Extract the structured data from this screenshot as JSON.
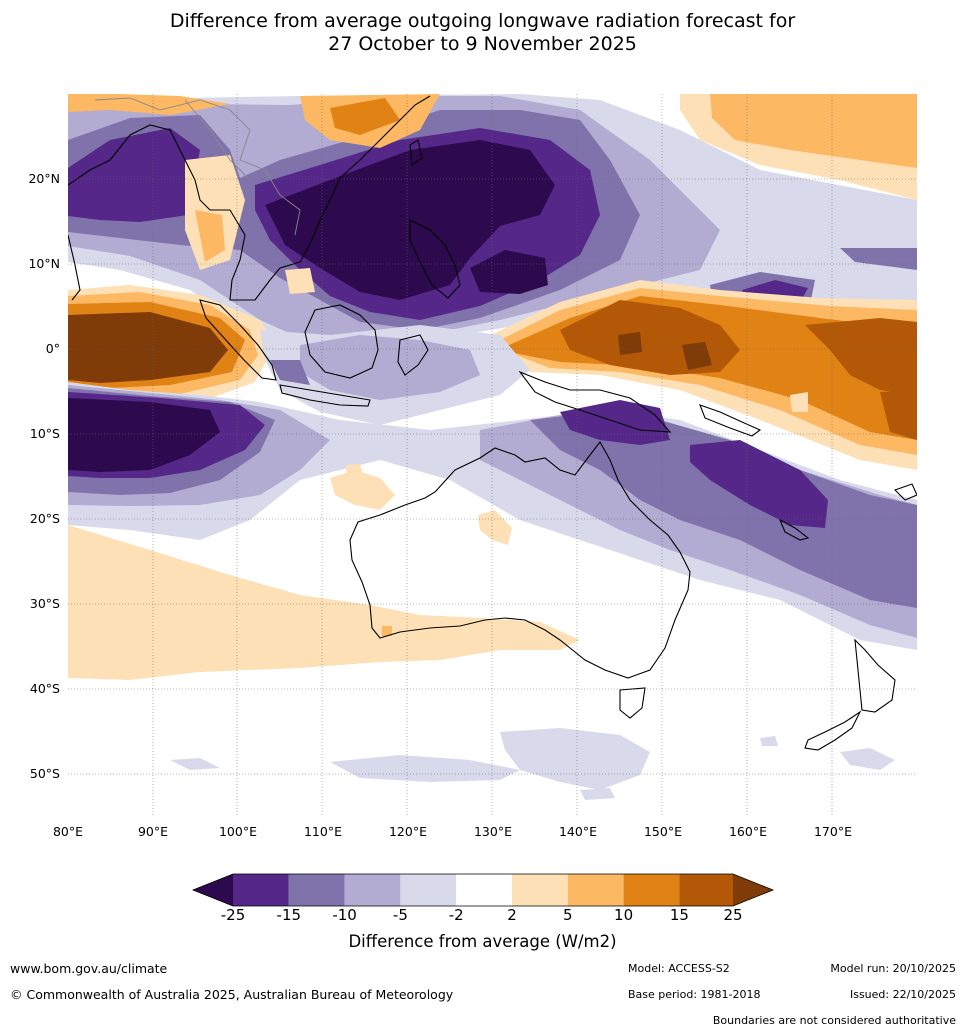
{
  "title": {
    "line1": "Difference from average outgoing longwave radiation forecast for",
    "line2": "27 October to 9 November 2025"
  },
  "map": {
    "lat_labels": [
      "20°N",
      "10°N",
      "0°",
      "10°S",
      "20°S",
      "30°S",
      "40°S",
      "50°S"
    ],
    "lon_labels": [
      "80°E",
      "90°E",
      "100°E",
      "110°E",
      "120°E",
      "130°E",
      "140°E",
      "150°E",
      "160°E",
      "170°E"
    ]
  },
  "colorbar": {
    "title": "Difference from average (W/m2)",
    "ticks": [
      "-25",
      "-15",
      "-10",
      "-5",
      "-2",
      "2",
      "5",
      "10",
      "15",
      "25"
    ],
    "colors": [
      "#2d0a4e",
      "#542788",
      "#8073ac",
      "#b2abd2",
      "#d8daeb",
      "#ffffff",
      "#fee0b6",
      "#fdb863",
      "#e08214",
      "#b35806",
      "#7f3b08"
    ]
  },
  "footer": {
    "url": "www.bom.gov.au/climate",
    "copyright": "© Commonwealth of Australia 2025, Australian Bureau of Meteorology",
    "model": "Model: ACCESS-S2",
    "base_period": "Base period: 1981-2018",
    "model_run": "Model run: 20/10/2025",
    "issued": "Issued: 22/10/2025",
    "disclaimer": "Boundaries are not considered authoritative"
  }
}
